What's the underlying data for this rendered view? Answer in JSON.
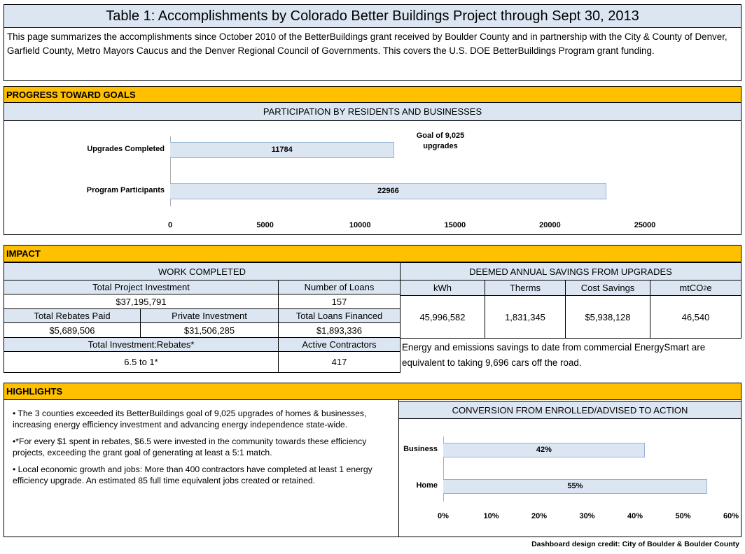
{
  "title": "Table 1: Accomplishments by Colorado Better Buildings Project through Sept 30, 2013",
  "intro": "This page summarizes the accomplishments since October 2010 of the BetterBuildings grant received by Boulder County and in partnership with the City & County of Denver, Garfield County, Metro Mayors Caucus and the Denver Regional Council of Governments. This covers the U.S. DOE BetterBuildings Program grant funding.",
  "progress": {
    "section_title": "PROGRESS TOWARD GOALS",
    "chart_title": "PARTICIPATION BY RESIDENTS AND BUSINESSES",
    "goal_note": "Goal of 9,025 upgrades"
  },
  "impact": {
    "section_title": "IMPACT",
    "work_completed": "WORK COMPLETED",
    "total_project_investment_label": "Total Project Investment",
    "total_project_investment": "$37,195,791",
    "number_of_loans_label": "Number of Loans",
    "number_of_loans": "157",
    "total_rebates_paid_label": "Total Rebates Paid",
    "total_rebates_paid": "$5,689,506",
    "private_investment_label": "Private Investment",
    "private_investment": "$31,506,285",
    "total_loans_financed_label": "Total Loans Financed",
    "total_loans_financed": "$1,893,336",
    "investment_rebates_label": "Total Investment:Rebates*",
    "investment_rebates": "6.5 to 1*",
    "active_contractors_label": "Active Contractors",
    "active_contractors": "417",
    "savings_title": "DEEMED ANNUAL SAVINGS FROM UPGRADES",
    "kwh_label": "kWh",
    "kwh": "45,996,582",
    "therms_label": "Therms",
    "therms": "1,831,345",
    "cost_savings_label": "Cost Savings",
    "cost_savings": "$5,938,128",
    "mtco2e_label": "mtCO",
    "mtco2e_sub": "2",
    "mtco2e_suffix": "e",
    "mtco2e": "46,540",
    "equivalence_note": "Energy and emissions savings to date from commercial EnergySmart are equivalent to taking 9,696 cars off the road."
  },
  "highlights": {
    "section_title": "HIGHLIGHTS",
    "bullets": [
      "• The 3 counties exceeded its BetterBuildings goal of 9,025 upgrades of homes & businesses, increasing energy efficiency investment and advancing energy independence state-wide.",
      "•*For every $1 spent in rebates, $6.5 were invested in the community towards these efficiency projects, exceeding the grant goal of generating at least a 5:1 match.",
      "• Local economic growth and jobs: More than 400 contractors have completed at least 1 energy efficiency upgrade. An estimated 85 full time equivalent jobs created or retained."
    ],
    "conversion_title": "CONVERSION FROM ENROLLED/ADVISED TO ACTION"
  },
  "credit": "Dashboard design credit: City of Boulder & Boulder County",
  "colors": {
    "section_bar": "#ffc000",
    "header_fill": "#dce6f2",
    "bar_border": "#95b3d7"
  },
  "chart_data": [
    {
      "type": "bar",
      "orientation": "horizontal",
      "title": "PARTICIPATION BY RESIDENTS AND BUSINESSES",
      "categories": [
        "Upgrades Completed",
        "Program Participants"
      ],
      "values": [
        11784,
        22966
      ],
      "value_labels": [
        "11784",
        "22966"
      ],
      "xlim": [
        0,
        25000
      ],
      "x_ticks": [
        0,
        5000,
        10000,
        15000,
        20000,
        25000
      ],
      "x_tick_labels": [
        "0",
        "5000",
        "10000",
        "15000",
        "20000",
        "25000"
      ],
      "annotation": "Goal of 9,025 upgrades",
      "grid": false
    },
    {
      "type": "bar",
      "orientation": "horizontal",
      "title": "CONVERSION FROM ENROLLED/ADVISED TO ACTION",
      "categories": [
        "Business",
        "Home"
      ],
      "values": [
        42,
        55
      ],
      "value_labels": [
        "42%",
        "55%"
      ],
      "xlim": [
        0,
        60
      ],
      "x_ticks": [
        0,
        10,
        20,
        30,
        40,
        50,
        60
      ],
      "x_tick_labels": [
        "0%",
        "10%",
        "20%",
        "30%",
        "40%",
        "50%",
        "60%"
      ],
      "grid": false
    }
  ]
}
